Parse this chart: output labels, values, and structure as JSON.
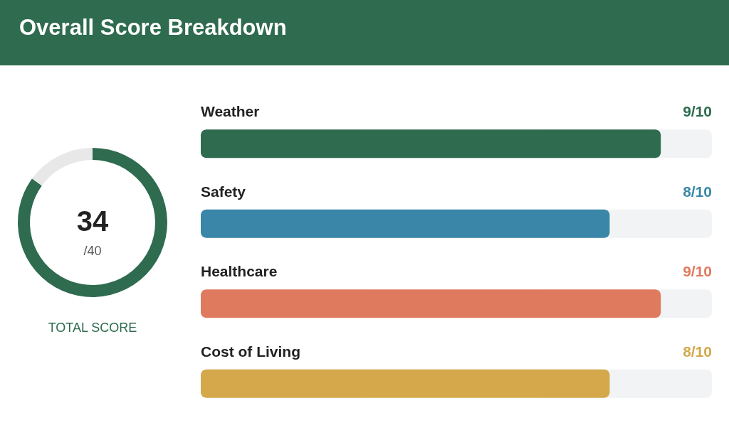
{
  "chart_data": [
    {
      "type": "donut",
      "title": "Overall Score Breakdown",
      "categories": [
        null,
        null
      ],
      "values": [
        85,
        15
      ],
      "colors": [
        "#2e6b4f",
        "#e8e8e8"
      ],
      "annotations": [
        "34",
        "/40",
        "TOTAL SCORE"
      ]
    },
    {
      "type": "bar",
      "orientation": "horizontal",
      "categories": [
        "Weather",
        "Safety",
        "Healthcare",
        "Cost of Living"
      ],
      "series": [
        {
          "colors": [
            "#2e6b4f",
            "#3a86a8",
            "#e07a5f",
            "#d4a84b"
          ],
          "values": [
            0.9,
            0.8,
            0.9,
            0.8
          ],
          "value_labels": [
            "9/10",
            "8/10",
            "9/10",
            "8/10"
          ]
        }
      ],
      "xlim": [
        0,
        1
      ],
      "tick_labels": false
    }
  ]
}
